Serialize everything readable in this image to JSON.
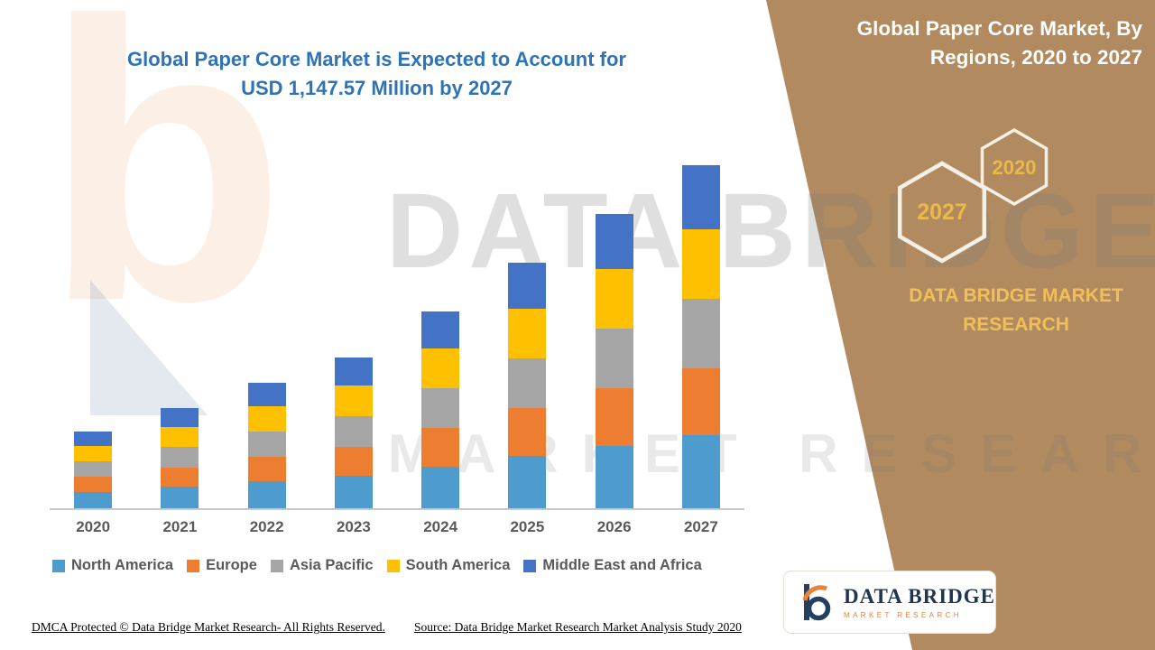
{
  "colors": {
    "panel_brown": "#B18A60",
    "title_blue": "#2E74B5",
    "gold": "#E9B949",
    "axis_gray": "#C9C9C9",
    "label_gray": "#595959"
  },
  "main": {
    "title": "Global Paper Core Market is Expected to Account for USD 1,147.57 Million by 2027"
  },
  "watermark": {
    "line1": "DATA BRIDGE",
    "line2": "MARKET RESEARCH",
    "logo_letter": "b"
  },
  "panel": {
    "title": "Global Paper Core Market, By Regions, 2020 to 2027",
    "hex_back_label": "2020",
    "hex_front_label": "2027",
    "brand": "DATA BRIDGE MARKET RESEARCH"
  },
  "footer": {
    "dmca": "DMCA Protected © Data Bridge Market Research- All Rights Reserved.",
    "source": "Source: Data Bridge Market Research Market Analysis Study 2020"
  },
  "logo": {
    "wordmark": "DATA BRIDGE",
    "tagline": "MARKET RESEARCH"
  },
  "chart_data": {
    "type": "bar",
    "stacked": true,
    "title": "Global Paper Core Market is Expected to Account for USD 1,147.57 Million by 2027",
    "subtitle": "Global Paper Core Market, By Regions, 2020 to 2027",
    "unit": "USD Million",
    "categories": [
      "2020",
      "2021",
      "2022",
      "2023",
      "2024",
      "2025",
      "2026",
      "2027"
    ],
    "series": [
      {
        "name": "North America",
        "color": "#4E9BCD",
        "values": [
          55,
          72,
          90,
          108,
          140,
          175,
          210,
          245
        ]
      },
      {
        "name": "Europe",
        "color": "#ED7D31",
        "values": [
          50,
          65,
          82,
          98,
          128,
          160,
          192,
          224
        ]
      },
      {
        "name": "Asia Pacific",
        "color": "#A5A5A5",
        "values": [
          52,
          68,
          85,
          102,
          133,
          166,
          199,
          232
        ]
      },
      {
        "name": "South America",
        "color": "#FFC000",
        "values": [
          52,
          68,
          85,
          102,
          133,
          166,
          199,
          232
        ]
      },
      {
        "name": "Middle East and Africa",
        "color": "#4472C4",
        "values": [
          48,
          62,
          78,
          94,
          124,
          154,
          185,
          214.57
        ]
      }
    ],
    "totals": [
      257,
      335,
      420,
      504,
      658,
      821,
      985,
      1147.57
    ],
    "ylim": [
      0,
      1200
    ],
    "grid": false,
    "y_axis_visible": false,
    "legend_position": "bottom"
  }
}
